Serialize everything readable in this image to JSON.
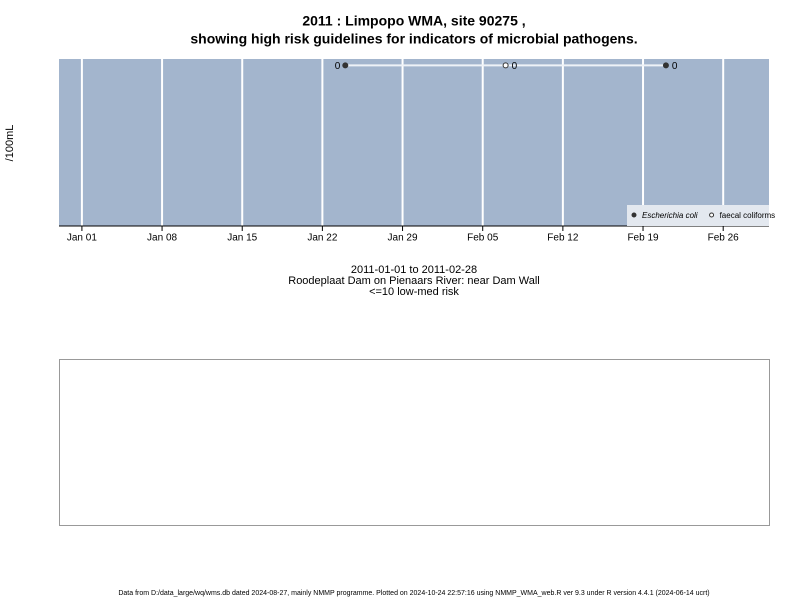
{
  "chart_data": {
    "type": "scatter",
    "title": "2011 : Limpopo WMA, site 90275 ,",
    "subtitle": "showing high risk guidelines for indicators of microbial pathogens.",
    "y_label": "/100mL",
    "caption": [
      "2011-01-01 to 2011-02-28",
      "Roodeplaat Dam on Pienaars River: near Dam Wall",
      "<=10 low-med risk"
    ],
    "footer": "Data from D:/data_large/wq/wms.db dated 2024-08-27, mainly NMMP programme. Plotted on 2024-10-24 22:57:16 using NMMP_WMA_web.R ver 9.3 under R version 4.4.1 (2024-06-14 ucrt)",
    "xlim": [
      "2010-12-30",
      "2011-03-02"
    ],
    "xticks": [
      {
        "value": "2011-01-01",
        "label": "Jan 01"
      },
      {
        "value": "2011-01-08",
        "label": "Jan 08"
      },
      {
        "value": "2011-01-15",
        "label": "Jan 15"
      },
      {
        "value": "2011-01-22",
        "label": "Jan 22"
      },
      {
        "value": "2011-01-29",
        "label": "Jan 29"
      },
      {
        "value": "2011-02-05",
        "label": "Feb 05"
      },
      {
        "value": "2011-02-12",
        "label": "Feb 12"
      },
      {
        "value": "2011-02-19",
        "label": "Feb 19"
      },
      {
        "value": "2011-02-26",
        "label": "Feb 26"
      }
    ],
    "ylim": [
      -25,
      1
    ],
    "grid": true,
    "legend": "bottom-right",
    "series": [
      {
        "name": "Escherichia coli",
        "color": "#333333",
        "marker": "filled",
        "x": [
          "2011-01-24",
          "2011-02-21"
        ],
        "values": [
          0,
          0
        ]
      },
      {
        "name": "faecal coliforms",
        "color": "#333333",
        "marker": "open",
        "x": [
          "2011-02-07"
        ],
        "values": [
          0
        ]
      }
    ]
  }
}
